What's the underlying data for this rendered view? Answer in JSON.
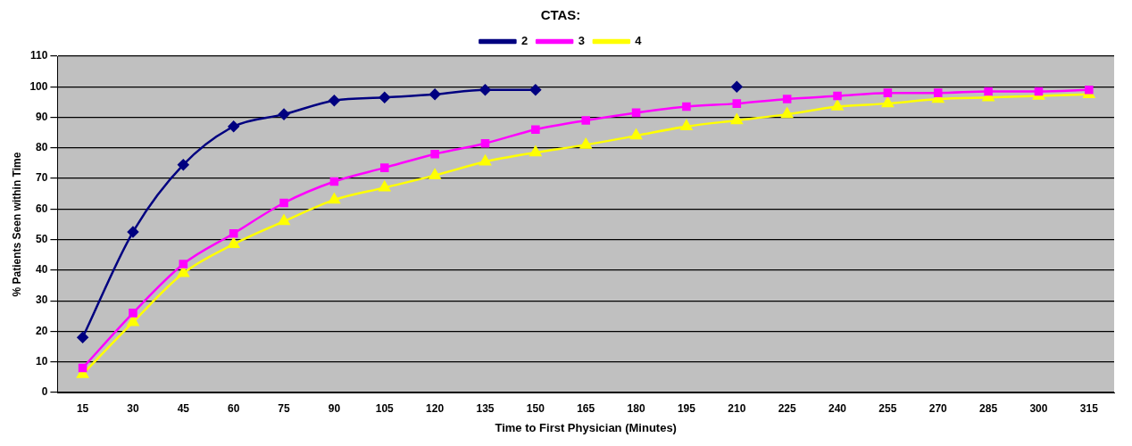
{
  "chart_data": {
    "type": "line",
    "legend_title": "CTAS:",
    "xlabel": "Time to First Physician (Minutes)",
    "ylabel": "% Patients Seen within Time",
    "categories": [
      "15",
      "30",
      "45",
      "60",
      "75",
      "90",
      "105",
      "120",
      "135",
      "150",
      "165",
      "180",
      "195",
      "210",
      "225",
      "240",
      "255",
      "270",
      "285",
      "300",
      "315"
    ],
    "series": [
      {
        "name": "2",
        "color": "#000080",
        "marker": "diamond",
        "values": [
          18,
          52.5,
          74.5,
          87,
          91,
          95.5,
          96.5,
          97.5,
          99,
          99,
          null,
          null,
          null,
          100,
          null,
          null,
          null,
          null,
          null,
          null,
          null
        ]
      },
      {
        "name": "3",
        "color": "#ff00ff",
        "marker": "square",
        "values": [
          8,
          26,
          42,
          52,
          62,
          69,
          73.5,
          78,
          81.5,
          86,
          89,
          91.5,
          93.5,
          94.5,
          96,
          97,
          98,
          98,
          98.5,
          98.5,
          99
        ]
      },
      {
        "name": "4",
        "color": "#ffff00",
        "marker": "triangle",
        "values": [
          6,
          23,
          39,
          48.5,
          56,
          63,
          67,
          71,
          75.5,
          78.5,
          81,
          84,
          87,
          89,
          91,
          93.5,
          94.5,
          96,
          96.5,
          97,
          97.5
        ]
      }
    ],
    "ylim": [
      0,
      110
    ],
    "yticks": [
      0,
      10,
      20,
      30,
      40,
      50,
      60,
      70,
      80,
      90,
      100,
      110
    ],
    "grid": "y",
    "legend": "top",
    "line_style": "solid"
  }
}
